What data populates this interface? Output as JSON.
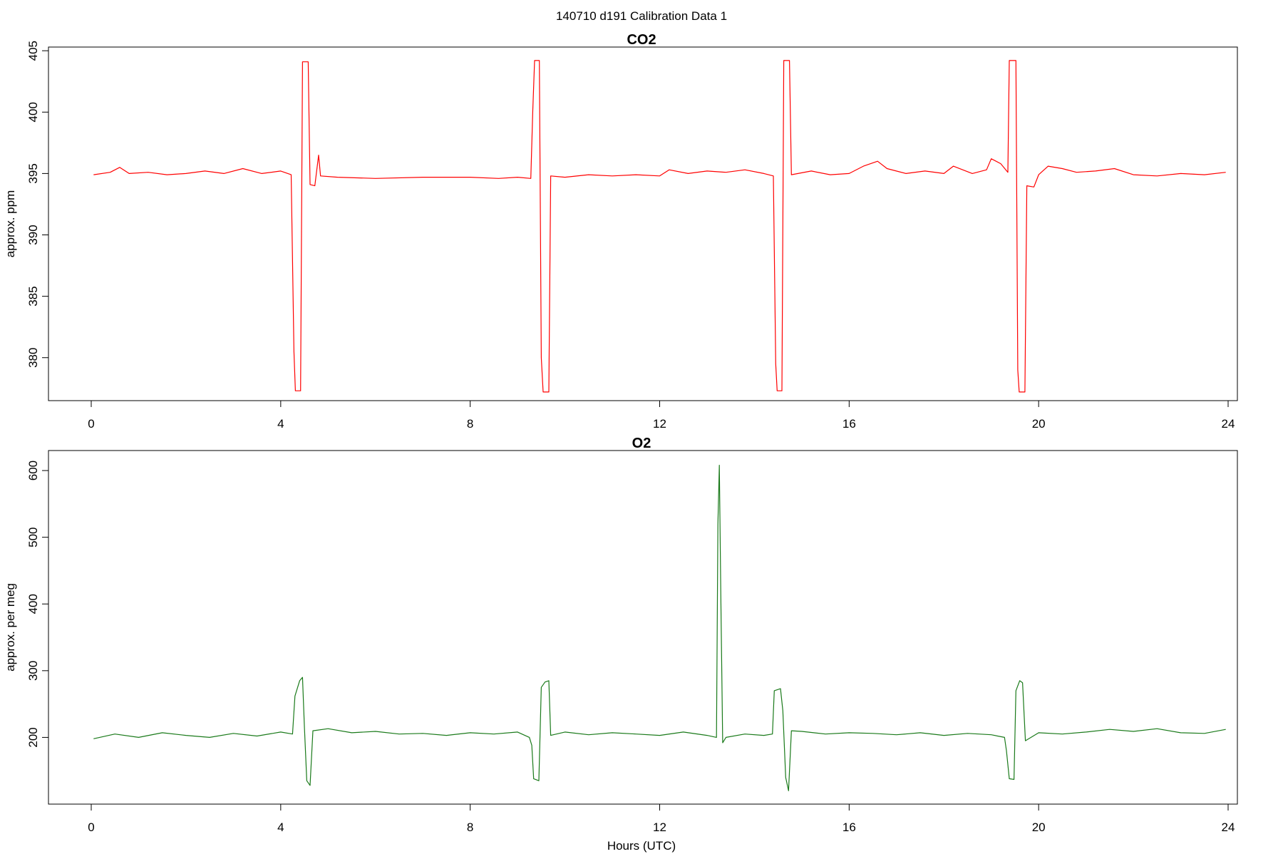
{
  "figure": {
    "title": "140710   d191   Calibration Data 1",
    "xlabel": "Hours (UTC)"
  },
  "chart_data": [
    {
      "type": "line",
      "title": "CO2",
      "xlabel": "",
      "ylabel": "approx. ppm",
      "xlim": [
        0,
        24
      ],
      "ylim": [
        376.5,
        405.3
      ],
      "x_ticks": [
        0,
        4,
        8,
        12,
        16,
        20,
        24
      ],
      "y_ticks": [
        380,
        385,
        390,
        395,
        400,
        405
      ],
      "grid": false,
      "series": [
        {
          "color": "#ff0000",
          "points": [
            [
              0.05,
              394.9
            ],
            [
              0.4,
              395.1
            ],
            [
              0.6,
              395.5
            ],
            [
              0.8,
              395.0
            ],
            [
              1.2,
              395.1
            ],
            [
              1.6,
              394.9
            ],
            [
              2.0,
              395.0
            ],
            [
              2.4,
              395.2
            ],
            [
              2.8,
              395.0
            ],
            [
              3.2,
              395.4
            ],
            [
              3.6,
              395.0
            ],
            [
              4.0,
              395.2
            ],
            [
              4.22,
              394.9
            ],
            [
              4.28,
              380.5
            ],
            [
              4.31,
              377.3
            ],
            [
              4.42,
              377.3
            ],
            [
              4.46,
              404.1
            ],
            [
              4.58,
              404.1
            ],
            [
              4.62,
              394.1
            ],
            [
              4.72,
              394.0
            ],
            [
              4.8,
              396.5
            ],
            [
              4.84,
              394.8
            ],
            [
              5.2,
              394.7
            ],
            [
              6.0,
              394.6
            ],
            [
              7.0,
              394.7
            ],
            [
              8.0,
              394.7
            ],
            [
              8.6,
              394.6
            ],
            [
              9.0,
              394.7
            ],
            [
              9.28,
              394.6
            ],
            [
              9.32,
              400.0
            ],
            [
              9.36,
              404.2
            ],
            [
              9.46,
              404.2
            ],
            [
              9.5,
              380.0
            ],
            [
              9.54,
              377.2
            ],
            [
              9.66,
              377.2
            ],
            [
              9.7,
              394.8
            ],
            [
              10.0,
              394.7
            ],
            [
              10.5,
              394.9
            ],
            [
              11.0,
              394.8
            ],
            [
              11.5,
              394.9
            ],
            [
              12.0,
              394.8
            ],
            [
              12.2,
              395.3
            ],
            [
              12.6,
              395.0
            ],
            [
              13.0,
              395.2
            ],
            [
              13.4,
              395.1
            ],
            [
              13.8,
              395.3
            ],
            [
              14.2,
              395.0
            ],
            [
              14.4,
              394.8
            ],
            [
              14.45,
              379.5
            ],
            [
              14.48,
              377.3
            ],
            [
              14.58,
              377.3
            ],
            [
              14.62,
              404.2
            ],
            [
              14.74,
              404.2
            ],
            [
              14.78,
              394.9
            ],
            [
              15.2,
              395.2
            ],
            [
              15.6,
              394.9
            ],
            [
              16.0,
              395.0
            ],
            [
              16.3,
              395.6
            ],
            [
              16.6,
              396.0
            ],
            [
              16.8,
              395.4
            ],
            [
              17.2,
              395.0
            ],
            [
              17.6,
              395.2
            ],
            [
              18.0,
              395.0
            ],
            [
              18.2,
              395.6
            ],
            [
              18.6,
              395.0
            ],
            [
              18.9,
              395.3
            ],
            [
              19.0,
              396.2
            ],
            [
              19.2,
              395.8
            ],
            [
              19.35,
              395.1
            ],
            [
              19.38,
              404.2
            ],
            [
              19.52,
              404.2
            ],
            [
              19.56,
              379.0
            ],
            [
              19.59,
              377.2
            ],
            [
              19.71,
              377.2
            ],
            [
              19.75,
              394.0
            ],
            [
              19.9,
              393.9
            ],
            [
              20.0,
              394.9
            ],
            [
              20.2,
              395.6
            ],
            [
              20.5,
              395.4
            ],
            [
              20.8,
              395.1
            ],
            [
              21.2,
              395.2
            ],
            [
              21.6,
              395.4
            ],
            [
              22.0,
              394.9
            ],
            [
              22.5,
              394.8
            ],
            [
              23.0,
              395.0
            ],
            [
              23.5,
              394.9
            ],
            [
              23.95,
              395.1
            ]
          ]
        }
      ]
    },
    {
      "type": "line",
      "title": "O2",
      "xlabel": "Hours (UTC)",
      "ylabel": "approx. per meg",
      "xlim": [
        0,
        24
      ],
      "ylim": [
        100,
        630
      ],
      "x_ticks": [
        0,
        4,
        8,
        12,
        16,
        20,
        24
      ],
      "y_ticks": [
        200,
        300,
        400,
        500,
        600
      ],
      "grid": false,
      "series": [
        {
          "color": "#1a7a1a",
          "points": [
            [
              0.05,
              198
            ],
            [
              0.5,
              205
            ],
            [
              1.0,
              200
            ],
            [
              1.5,
              207
            ],
            [
              2.0,
              203
            ],
            [
              2.5,
              200
            ],
            [
              3.0,
              206
            ],
            [
              3.5,
              202
            ],
            [
              4.0,
              208
            ],
            [
              4.25,
              205
            ],
            [
              4.3,
              262
            ],
            [
              4.4,
              285
            ],
            [
              4.46,
              290
            ],
            [
              4.5,
              215
            ],
            [
              4.55,
              135
            ],
            [
              4.62,
              128
            ],
            [
              4.68,
              210
            ],
            [
              5.0,
              213
            ],
            [
              5.5,
              207
            ],
            [
              6.0,
              209
            ],
            [
              6.5,
              205
            ],
            [
              7.0,
              206
            ],
            [
              7.5,
              203
            ],
            [
              8.0,
              207
            ],
            [
              8.5,
              205
            ],
            [
              9.0,
              208
            ],
            [
              9.25,
              200
            ],
            [
              9.3,
              188
            ],
            [
              9.34,
              138
            ],
            [
              9.45,
              135
            ],
            [
              9.5,
              275
            ],
            [
              9.58,
              283
            ],
            [
              9.66,
              285
            ],
            [
              9.7,
              203
            ],
            [
              10.0,
              208
            ],
            [
              10.5,
              204
            ],
            [
              11.0,
              207
            ],
            [
              11.5,
              205
            ],
            [
              12.0,
              203
            ],
            [
              12.5,
              208
            ],
            [
              13.0,
              203
            ],
            [
              13.2,
              200
            ],
            [
              13.23,
              520
            ],
            [
              13.26,
              608
            ],
            [
              13.29,
              420
            ],
            [
              13.33,
              192
            ],
            [
              13.4,
              200
            ],
            [
              13.8,
              205
            ],
            [
              14.2,
              203
            ],
            [
              14.38,
              205
            ],
            [
              14.42,
              270
            ],
            [
              14.55,
              273
            ],
            [
              14.6,
              240
            ],
            [
              14.66,
              140
            ],
            [
              14.72,
              120
            ],
            [
              14.78,
              210
            ],
            [
              15.0,
              209
            ],
            [
              15.5,
              205
            ],
            [
              16.0,
              207
            ],
            [
              16.5,
              206
            ],
            [
              17.0,
              204
            ],
            [
              17.5,
              207
            ],
            [
              18.0,
              203
            ],
            [
              18.5,
              206
            ],
            [
              19.0,
              204
            ],
            [
              19.28,
              200
            ],
            [
              19.32,
              180
            ],
            [
              19.38,
              138
            ],
            [
              19.48,
              137
            ],
            [
              19.52,
              270
            ],
            [
              19.6,
              285
            ],
            [
              19.66,
              282
            ],
            [
              19.72,
              195
            ],
            [
              20.0,
              207
            ],
            [
              20.5,
              205
            ],
            [
              21.0,
              208
            ],
            [
              21.5,
              212
            ],
            [
              22.0,
              209
            ],
            [
              22.5,
              213
            ],
            [
              23.0,
              207
            ],
            [
              23.5,
              206
            ],
            [
              23.95,
              212
            ]
          ]
        }
      ]
    }
  ]
}
